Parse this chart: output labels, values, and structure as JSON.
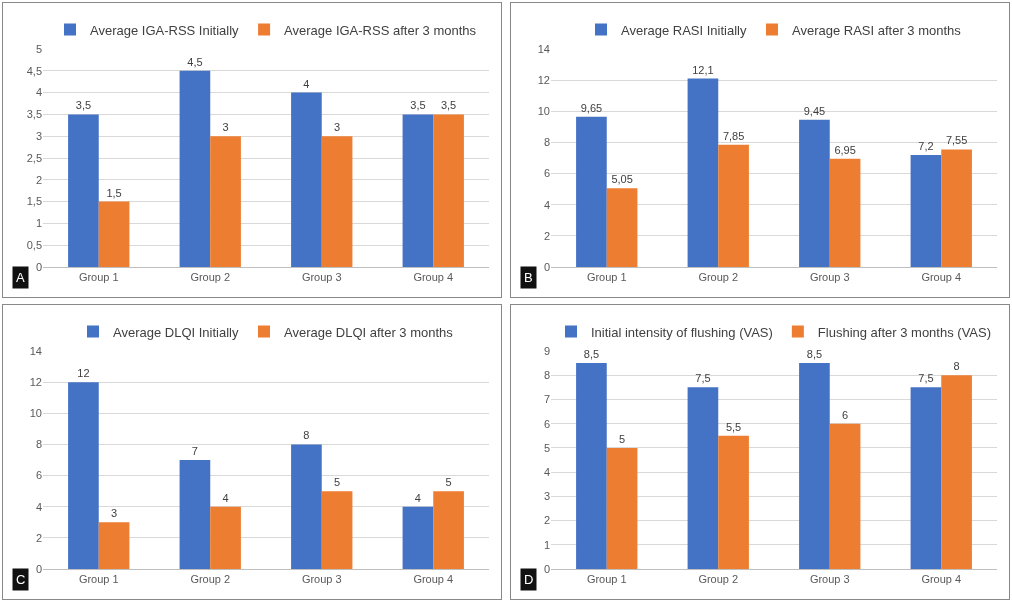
{
  "chart_data": [
    {
      "type": "bar",
      "categories": [
        "Group 1",
        "Group 2",
        "Group 3",
        "Group 4"
      ],
      "series": [
        {
          "name": "Average IGA-RSS Initially",
          "color": "#4472c4",
          "values": [
            3.5,
            4.5,
            4,
            3.5
          ],
          "value_labels": [
            "3,5",
            "4,5",
            "4",
            "3,5"
          ]
        },
        {
          "name": "Average IGA-RSS after 3 months",
          "color": "#ed7d31",
          "values": [
            1.5,
            3,
            3,
            3.5
          ],
          "value_labels": [
            "1,5",
            "3",
            "3",
            "3,5"
          ]
        }
      ],
      "ylim": [
        0,
        5
      ],
      "yticks": [
        0,
        {
          "value": 0.5,
          "label": "0,5"
        },
        1,
        {
          "value": 1.5,
          "label": "1,5"
        },
        2,
        {
          "value": 2.5,
          "label": "2,5"
        },
        3,
        {
          "value": 3.5,
          "label": "3,5"
        },
        4,
        {
          "value": 4.5,
          "label": "4,5"
        },
        5
      ],
      "grid": "y",
      "legend": "top",
      "annotations": [
        "A"
      ]
    },
    {
      "type": "bar",
      "categories": [
        "Group 1",
        "Group 2",
        "Group 3",
        "Group 4"
      ],
      "series": [
        {
          "name": "Average RASI Initially",
          "color": "#4472c4",
          "values": [
            9.65,
            12.1,
            9.45,
            7.2
          ],
          "value_labels": [
            "9,65",
            "12,1",
            "9,45",
            "7,2"
          ]
        },
        {
          "name": "Average RASI after 3 months",
          "color": "#ed7d31",
          "values": [
            5.05,
            7.85,
            6.95,
            7.55
          ],
          "value_labels": [
            "5,05",
            "7,85",
            "6,95",
            "7,55"
          ]
        }
      ],
      "ylim": [
        0,
        14
      ],
      "yticks": [
        0,
        2,
        4,
        6,
        8,
        10,
        12,
        14
      ],
      "grid": "y",
      "legend": "top",
      "annotations": [
        "B"
      ]
    },
    {
      "type": "bar",
      "categories": [
        "Group 1",
        "Group 2",
        "Group 3",
        "Group 4"
      ],
      "series": [
        {
          "name": "Average DLQI Initially",
          "color": "#4472c4",
          "values": [
            12,
            7,
            8,
            4
          ],
          "value_labels": [
            "12",
            "7",
            "8",
            "4"
          ]
        },
        {
          "name": "Average DLQI after 3 months",
          "color": "#ed7d31",
          "values": [
            3,
            4,
            5,
            5
          ],
          "value_labels": [
            "3",
            "4",
            "5",
            "5"
          ]
        }
      ],
      "ylim": [
        0,
        14
      ],
      "yticks": [
        0,
        2,
        4,
        6,
        8,
        10,
        12,
        14
      ],
      "grid": "y",
      "legend": "top",
      "annotations": [
        "C"
      ]
    },
    {
      "type": "bar",
      "categories": [
        "Group 1",
        "Group 2",
        "Group 3",
        "Group 4"
      ],
      "series": [
        {
          "name": "Initial intensity of flushing (VAS)",
          "color": "#4472c4",
          "values": [
            8.5,
            7.5,
            8.5,
            7.5
          ],
          "value_labels": [
            "8,5",
            "7,5",
            "8,5",
            "7,5"
          ]
        },
        {
          "name": "Flushing after 3 months (VAS)",
          "color": "#ed7d31",
          "values": [
            5,
            5.5,
            6,
            8
          ],
          "value_labels": [
            "5",
            "5,5",
            "6",
            "8"
          ]
        }
      ],
      "ylim": [
        0,
        9
      ],
      "yticks": [
        0,
        1,
        2,
        3,
        4,
        5,
        6,
        7,
        8,
        9
      ],
      "grid": "y",
      "legend": "top",
      "annotations": [
        "D"
      ]
    }
  ]
}
